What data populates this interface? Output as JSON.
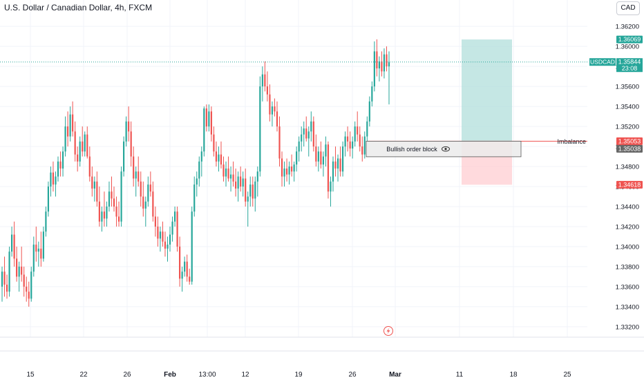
{
  "header": {
    "symbol_title": "U.S. Dollar / Canadian Dollar, 4h, FXCM",
    "currency": "CAD"
  },
  "colors": {
    "up": "#26a69a",
    "down": "#ef5350",
    "grid": "#f0f3fa",
    "axis_text": "#131722",
    "price_line": "#26a69a",
    "target_zone": "#b2dfdb",
    "stop_zone": "#ffcdd2",
    "imbalance_line": "#ef5350",
    "block_fill": "#ebebeb",
    "block_border": "#555555"
  },
  "chart_data": {
    "type": "candlestick",
    "symbol": "USDCAD",
    "timeframe": "4h",
    "y_axis": {
      "ticks": [
        "1.36200",
        "1.36000",
        "1.35800",
        "1.35600",
        "1.35400",
        "1.35200",
        "1.35000",
        "1.34800",
        "1.34600",
        "1.34400",
        "1.34200",
        "1.34000",
        "1.33800",
        "1.33600",
        "1.33400",
        "1.33200"
      ],
      "ylim": [
        1.3313,
        1.3627
      ]
    },
    "x_axis": {
      "ticks": [
        "15",
        "22",
        "26",
        "Feb",
        "13:00",
        "12",
        "19",
        "26",
        "Mar",
        "11",
        "18",
        "25"
      ]
    },
    "price_labels": {
      "target": "1.36069",
      "current_symbol": "USDCAD",
      "current_price": "1.35844",
      "countdown": "23:08",
      "imbalance": "1.35053",
      "order_block": "1.35038",
      "stop": "1.34618"
    },
    "annotations": {
      "imbalance_label": "Imbalance",
      "order_block_label": "Bullish order block"
    },
    "levels": {
      "current": 1.35844,
      "target": 1.36069,
      "imbalance": 1.35053,
      "order_block_top": 1.35053,
      "order_block_bottom": 1.34925,
      "stop": 1.34618
    },
    "candles": [
      [
        1.336,
        1.338,
        1.3345,
        1.3375
      ],
      [
        1.3375,
        1.339,
        1.335,
        1.3362
      ],
      [
        1.3362,
        1.3372,
        1.3348,
        1.3355
      ],
      [
        1.3355,
        1.34,
        1.335,
        1.3395
      ],
      [
        1.3395,
        1.342,
        1.339,
        1.3412
      ],
      [
        1.3412,
        1.3425,
        1.338,
        1.3388
      ],
      [
        1.3388,
        1.34,
        1.3365,
        1.337
      ],
      [
        1.337,
        1.3385,
        1.3355,
        1.338
      ],
      [
        1.338,
        1.34,
        1.3365,
        1.3372
      ],
      [
        1.3372,
        1.338,
        1.335,
        1.336
      ],
      [
        1.336,
        1.337,
        1.3345,
        1.3355
      ],
      [
        1.3355,
        1.3365,
        1.334,
        1.3348
      ],
      [
        1.3348,
        1.338,
        1.3345,
        1.3375
      ],
      [
        1.3375,
        1.341,
        1.337,
        1.3402
      ],
      [
        1.3402,
        1.342,
        1.3385,
        1.3395
      ],
      [
        1.3395,
        1.3405,
        1.338,
        1.3398
      ],
      [
        1.3398,
        1.3415,
        1.338,
        1.3388
      ],
      [
        1.3388,
        1.342,
        1.3385,
        1.3415
      ],
      [
        1.3415,
        1.344,
        1.341,
        1.3435
      ],
      [
        1.3435,
        1.3465,
        1.343,
        1.346
      ],
      [
        1.346,
        1.348,
        1.345,
        1.3474
      ],
      [
        1.3474,
        1.3485,
        1.3455,
        1.3462
      ],
      [
        1.3462,
        1.3475,
        1.345,
        1.347
      ],
      [
        1.347,
        1.349,
        1.3465,
        1.3485
      ],
      [
        1.3485,
        1.3495,
        1.347,
        1.3478
      ],
      [
        1.3478,
        1.35,
        1.347,
        1.3495
      ],
      [
        1.3495,
        1.353,
        1.349,
        1.352
      ],
      [
        1.352,
        1.3535,
        1.35,
        1.351
      ],
      [
        1.351,
        1.354,
        1.3505,
        1.3532
      ],
      [
        1.3532,
        1.3545,
        1.351,
        1.3515
      ],
      [
        1.3515,
        1.3525,
        1.3485,
        1.3492
      ],
      [
        1.3492,
        1.35,
        1.3475,
        1.3485
      ],
      [
        1.3485,
        1.351,
        1.348,
        1.3505
      ],
      [
        1.3505,
        1.352,
        1.349,
        1.3495
      ],
      [
        1.3495,
        1.3515,
        1.349,
        1.3512
      ],
      [
        1.3512,
        1.352,
        1.3488,
        1.349
      ],
      [
        1.349,
        1.35,
        1.3465,
        1.347
      ],
      [
        1.347,
        1.348,
        1.345,
        1.3458
      ],
      [
        1.3458,
        1.347,
        1.3445,
        1.3465
      ],
      [
        1.3465,
        1.3475,
        1.344,
        1.3445
      ],
      [
        1.3445,
        1.346,
        1.342,
        1.3425
      ],
      [
        1.3425,
        1.344,
        1.3415,
        1.3435
      ],
      [
        1.3435,
        1.3455,
        1.342,
        1.3428
      ],
      [
        1.3428,
        1.3445,
        1.342,
        1.344
      ],
      [
        1.344,
        1.3465,
        1.3435,
        1.3455
      ],
      [
        1.3455,
        1.347,
        1.344,
        1.3448
      ],
      [
        1.3448,
        1.346,
        1.3435,
        1.344
      ],
      [
        1.344,
        1.345,
        1.342,
        1.343
      ],
      [
        1.343,
        1.3445,
        1.342,
        1.3425
      ],
      [
        1.3425,
        1.348,
        1.342,
        1.3475
      ],
      [
        1.3475,
        1.351,
        1.347,
        1.3505
      ],
      [
        1.3505,
        1.353,
        1.35,
        1.3525
      ],
      [
        1.3525,
        1.354,
        1.3505,
        1.3515
      ],
      [
        1.3515,
        1.3525,
        1.348,
        1.349
      ],
      [
        1.349,
        1.35,
        1.346,
        1.3468
      ],
      [
        1.3468,
        1.348,
        1.345,
        1.3475
      ],
      [
        1.3475,
        1.349,
        1.346,
        1.3465
      ],
      [
        1.3465,
        1.3475,
        1.344,
        1.345
      ],
      [
        1.345,
        1.3465,
        1.343,
        1.3438
      ],
      [
        1.3438,
        1.345,
        1.342,
        1.3445
      ],
      [
        1.3445,
        1.347,
        1.344,
        1.3462
      ],
      [
        1.3462,
        1.3475,
        1.345,
        1.3455
      ],
      [
        1.3455,
        1.3465,
        1.3425,
        1.343
      ],
      [
        1.343,
        1.344,
        1.341,
        1.342
      ],
      [
        1.342,
        1.343,
        1.34,
        1.3408
      ],
      [
        1.3408,
        1.342,
        1.3395,
        1.3415
      ],
      [
        1.3415,
        1.3425,
        1.34,
        1.3405
      ],
      [
        1.3405,
        1.3415,
        1.339,
        1.3398
      ],
      [
        1.3398,
        1.341,
        1.3385,
        1.3402
      ],
      [
        1.3402,
        1.342,
        1.3395,
        1.3412
      ],
      [
        1.3412,
        1.343,
        1.3405,
        1.3425
      ],
      [
        1.3425,
        1.344,
        1.342,
        1.3435
      ],
      [
        1.3435,
        1.344,
        1.3395,
        1.34
      ],
      [
        1.34,
        1.341,
        1.336,
        1.3368
      ],
      [
        1.3368,
        1.338,
        1.3355,
        1.3375
      ],
      [
        1.3375,
        1.339,
        1.337,
        1.3385
      ],
      [
        1.3385,
        1.3392,
        1.3365,
        1.337
      ],
      [
        1.337,
        1.3378,
        1.3362,
        1.3365
      ],
      [
        1.3365,
        1.344,
        1.3362,
        1.3435
      ],
      [
        1.3435,
        1.347,
        1.343,
        1.3462
      ],
      [
        1.3462,
        1.3475,
        1.345,
        1.3468
      ],
      [
        1.3468,
        1.349,
        1.346,
        1.3485
      ],
      [
        1.3485,
        1.35,
        1.347,
        1.3495
      ],
      [
        1.3495,
        1.354,
        1.349,
        1.3538
      ],
      [
        1.3538,
        1.3542,
        1.3515,
        1.352
      ],
      [
        1.352,
        1.3542,
        1.3515,
        1.3535
      ],
      [
        1.3535,
        1.354,
        1.3505,
        1.3512
      ],
      [
        1.3512,
        1.352,
        1.349,
        1.3495
      ],
      [
        1.3495,
        1.3505,
        1.348,
        1.3485
      ],
      [
        1.3485,
        1.35,
        1.3475,
        1.3492
      ],
      [
        1.3492,
        1.3505,
        1.3478,
        1.3482
      ],
      [
        1.3482,
        1.349,
        1.3465,
        1.347
      ],
      [
        1.347,
        1.3485,
        1.346,
        1.3478
      ],
      [
        1.3478,
        1.349,
        1.3465,
        1.3468
      ],
      [
        1.3468,
        1.348,
        1.3455,
        1.3472
      ],
      [
        1.3472,
        1.3485,
        1.346,
        1.3465
      ],
      [
        1.3465,
        1.3478,
        1.345,
        1.3458
      ],
      [
        1.3458,
        1.3475,
        1.3445,
        1.347
      ],
      [
        1.347,
        1.348,
        1.3455,
        1.346
      ],
      [
        1.346,
        1.3475,
        1.345,
        1.3468
      ],
      [
        1.3468,
        1.3478,
        1.344,
        1.3445
      ],
      [
        1.3445,
        1.3455,
        1.342,
        1.345
      ],
      [
        1.345,
        1.347,
        1.344,
        1.3462
      ],
      [
        1.3462,
        1.347,
        1.344,
        1.3448
      ],
      [
        1.3448,
        1.347,
        1.3435,
        1.3465
      ],
      [
        1.3465,
        1.348,
        1.345,
        1.3475
      ],
      [
        1.3475,
        1.357,
        1.347,
        1.356
      ],
      [
        1.356,
        1.358,
        1.3545,
        1.3572
      ],
      [
        1.3572,
        1.3585,
        1.3555,
        1.356
      ],
      [
        1.356,
        1.3575,
        1.3545,
        1.3552
      ],
      [
        1.3552,
        1.3562,
        1.3525,
        1.3532
      ],
      [
        1.3532,
        1.3545,
        1.352,
        1.354
      ],
      [
        1.354,
        1.3548,
        1.353,
        1.3535
      ],
      [
        1.3535,
        1.3545,
        1.3515,
        1.352
      ],
      [
        1.352,
        1.353,
        1.348,
        1.3488
      ],
      [
        1.3488,
        1.3495,
        1.346,
        1.347
      ],
      [
        1.347,
        1.3485,
        1.346,
        1.3478
      ],
      [
        1.3478,
        1.3488,
        1.3465,
        1.3472
      ],
      [
        1.3472,
        1.3485,
        1.3462,
        1.348
      ],
      [
        1.348,
        1.3492,
        1.347,
        1.3475
      ],
      [
        1.3475,
        1.3485,
        1.3465,
        1.3482
      ],
      [
        1.3482,
        1.35,
        1.3475,
        1.3495
      ],
      [
        1.3495,
        1.351,
        1.3485,
        1.3505
      ],
      [
        1.3505,
        1.352,
        1.3495,
        1.3512
      ],
      [
        1.3512,
        1.3525,
        1.35,
        1.3518
      ],
      [
        1.3518,
        1.353,
        1.3505,
        1.3508
      ],
      [
        1.3508,
        1.352,
        1.349,
        1.3515
      ],
      [
        1.3515,
        1.3535,
        1.3505,
        1.3525
      ],
      [
        1.3525,
        1.353,
        1.3495,
        1.35
      ],
      [
        1.35,
        1.3512,
        1.348,
        1.3485
      ],
      [
        1.3485,
        1.35,
        1.3475,
        1.3495
      ],
      [
        1.3495,
        1.3505,
        1.3478,
        1.3482
      ],
      [
        1.3482,
        1.3495,
        1.347,
        1.349
      ],
      [
        1.349,
        1.351,
        1.348,
        1.3502
      ],
      [
        1.3502,
        1.3505,
        1.3448,
        1.3455
      ],
      [
        1.3455,
        1.347,
        1.344,
        1.3465
      ],
      [
        1.3465,
        1.349,
        1.3455,
        1.3485
      ],
      [
        1.3485,
        1.35,
        1.347,
        1.3478
      ],
      [
        1.3478,
        1.3492,
        1.3465,
        1.3488
      ],
      [
        1.3488,
        1.35,
        1.347,
        1.3475
      ],
      [
        1.3475,
        1.3505,
        1.347,
        1.35
      ],
      [
        1.35,
        1.3515,
        1.349,
        1.351
      ],
      [
        1.351,
        1.352,
        1.3495,
        1.3505
      ],
      [
        1.3505,
        1.3515,
        1.349,
        1.3498
      ],
      [
        1.3498,
        1.351,
        1.3488,
        1.3505
      ],
      [
        1.3505,
        1.3525,
        1.35,
        1.352
      ],
      [
        1.352,
        1.3535,
        1.3505,
        1.3512
      ],
      [
        1.3512,
        1.352,
        1.3495,
        1.35
      ],
      [
        1.35,
        1.351,
        1.3485,
        1.3492
      ],
      [
        1.3492,
        1.3515,
        1.3488,
        1.351
      ],
      [
        1.351,
        1.353,
        1.3505,
        1.3525
      ],
      [
        1.3525,
        1.355,
        1.352,
        1.3545
      ],
      [
        1.3545,
        1.3565,
        1.354,
        1.356
      ],
      [
        1.356,
        1.3605,
        1.3555,
        1.3595
      ],
      [
        1.3595,
        1.3607,
        1.357,
        1.3578
      ],
      [
        1.3578,
        1.359,
        1.3565,
        1.3585
      ],
      [
        1.3585,
        1.3595,
        1.357,
        1.3575
      ],
      [
        1.3575,
        1.3598,
        1.3568,
        1.3592
      ],
      [
        1.3592,
        1.36,
        1.3575,
        1.358
      ],
      [
        1.358,
        1.3595,
        1.3542,
        1.3584
      ]
    ]
  }
}
